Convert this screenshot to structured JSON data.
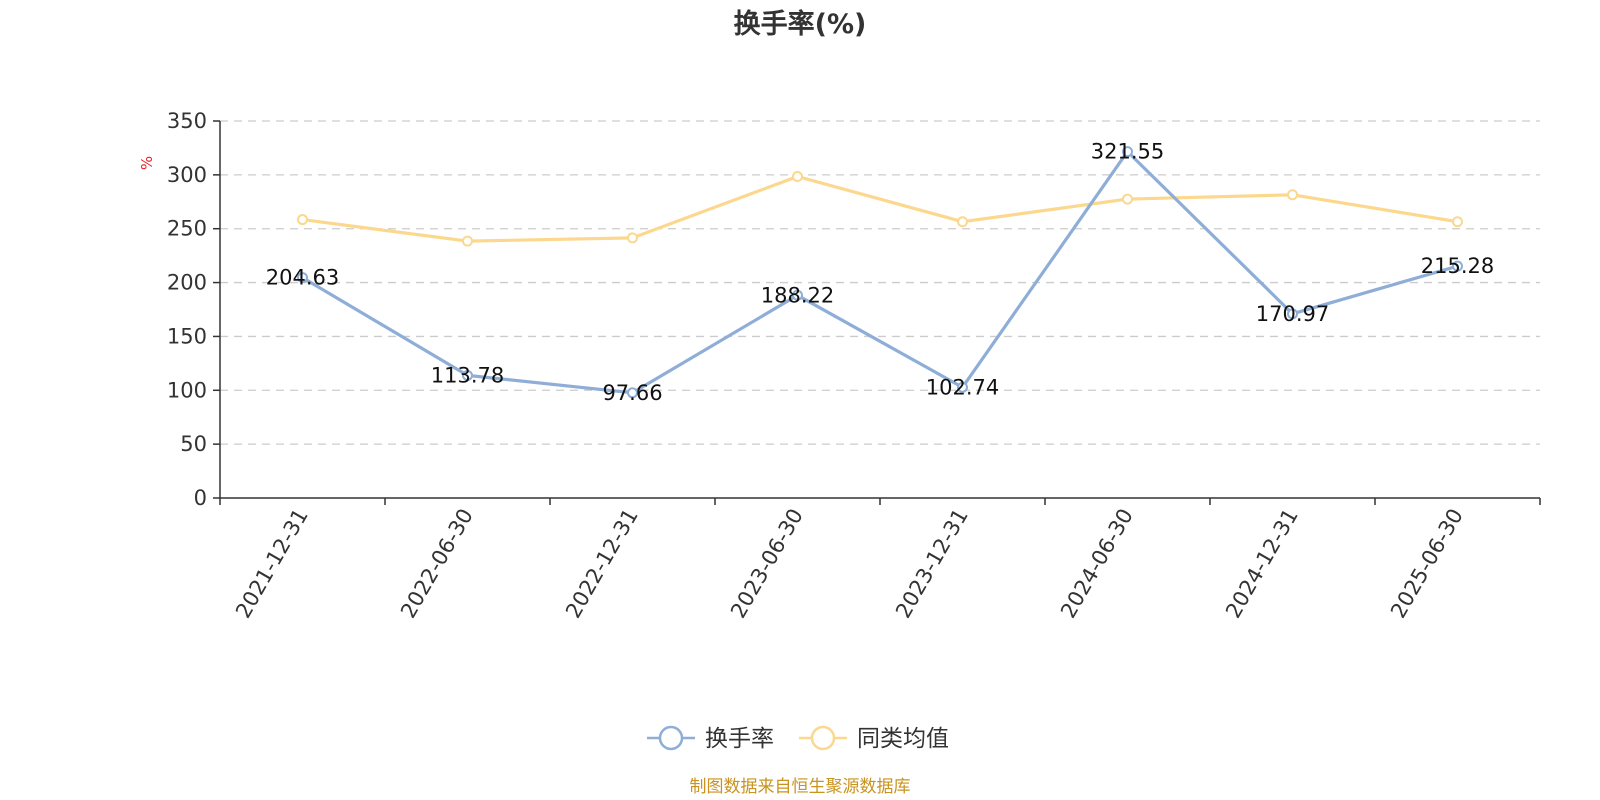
{
  "chart_data": {
    "type": "line",
    "title": "换手率(%)",
    "ylabel": "%",
    "xlabel": "",
    "ylim": [
      0,
      350
    ],
    "yticks": [
      0,
      50,
      100,
      150,
      200,
      250,
      300,
      350
    ],
    "grid": true,
    "legend_position": "bottom-center",
    "categories": [
      "2021-12-31",
      "2022-06-30",
      "2022-12-31",
      "2023-06-30",
      "2023-12-31",
      "2024-06-30",
      "2024-12-31",
      "2025-06-30"
    ],
    "series": [
      {
        "name": "换手率",
        "color": "#8eaed8",
        "values": [
          204.63,
          113.78,
          97.66,
          188.22,
          102.74,
          321.55,
          170.97,
          215.28
        ],
        "data_labels": [
          "204.63",
          "113.78",
          "97.66",
          "188.22",
          "102.74",
          "321.55",
          "170.97",
          "215.28"
        ]
      },
      {
        "name": "同类均值",
        "color": "#fbd88e",
        "values": [
          258.5,
          238.5,
          241.5,
          298.5,
          256.5,
          277.5,
          281.5,
          256.5
        ]
      }
    ],
    "source": "制图数据来自恒生聚源数据库",
    "source_color": "#c9931f"
  }
}
